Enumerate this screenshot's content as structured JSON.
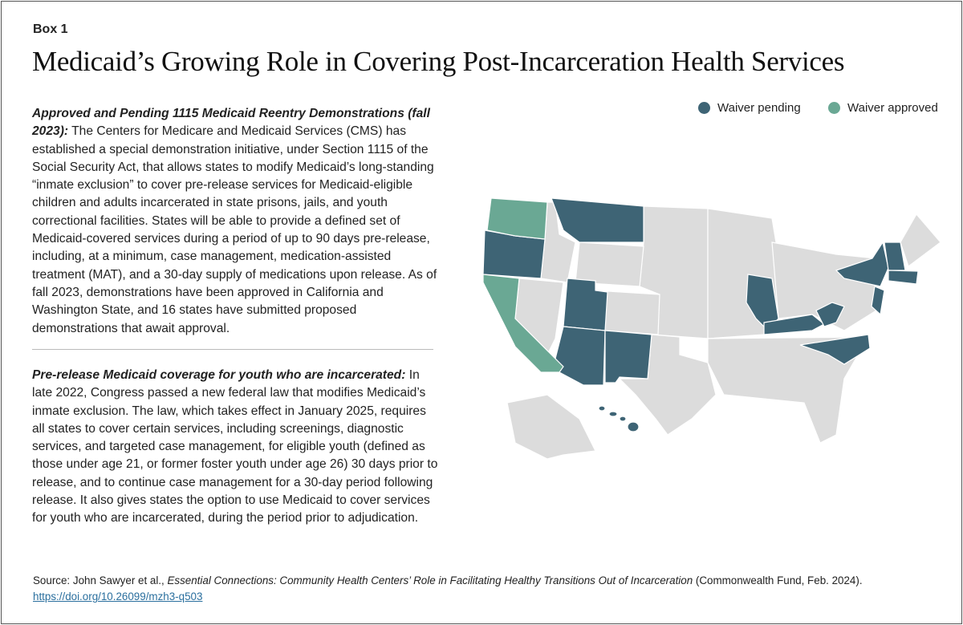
{
  "header": {
    "label": "Box 1",
    "title": "Medicaid’s Growing Role in Covering Post-Incarceration Health Services"
  },
  "paragraphs": [
    {
      "lead": "Approved and Pending 1115 Medicaid Reentry Demonstrations (fall 2023):",
      "text": " The Centers for Medicare and Medicaid Services (CMS) has established a special demonstration initiative, under Section 1115 of the Social Security Act, that allows states to modify Medicaid’s long-standing “inmate exclusion” to cover pre-release services for Medicaid-eligible children and adults incarcerated in state prisons, jails, and youth correctional facilities. States will be able to provide a defined set of Medicaid-covered services during a period of up to 90 days pre-release, including, at a minimum, case management, medication-assisted treatment (MAT), and a 30-day supply of medications upon release. As of fall 2023, demonstrations have been approved in California and Washington State, and 16 states have submitted proposed demonstrations that await approval."
    },
    {
      "lead": "Pre-release Medicaid coverage for youth who are incarcerated:",
      "text": " In late 2022, Congress passed a new federal law that modifies Medicaid’s inmate exclusion. The law, which takes effect in January 2025, requires all states to cover certain services, including screenings, diagnostic services, and targeted case management, for eligible youth (defined as those under age 21, or former foster youth under age 26) 30 days prior to release, and to continue case management for a 30-day period following release. It also gives states the option to use Medicaid to cover services for youth who are incarcerated, during the period prior to adjudication."
    }
  ],
  "legend": [
    {
      "label": "Waiver pending",
      "color": "#3e6475"
    },
    {
      "label": "Waiver approved",
      "color": "#6aa894"
    }
  ],
  "source": {
    "prefix": "Source: John Sawyer et al., ",
    "work": "Essential Connections: Community Health Centers’ Role in Facilitating Healthy Transitions Out of Incarceration",
    "suffix": " (Commonwealth Fund, Feb. 2024).",
    "link": "https://doi.org/10.26099/mzh3-q503"
  }
}
